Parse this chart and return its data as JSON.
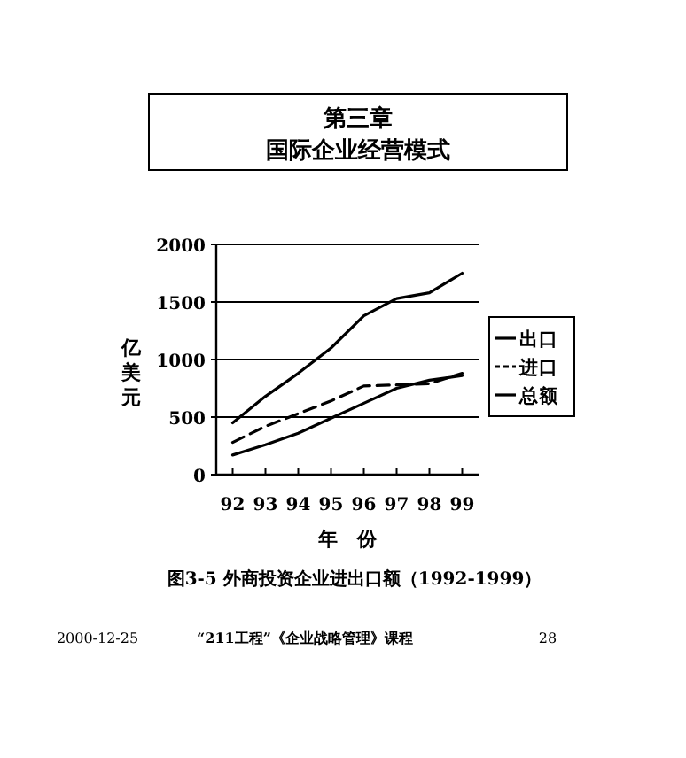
{
  "chart_data": {
    "type": "line",
    "title": "第三章",
    "subtitle": "国际企业经营模式",
    "xlabel": "年　份",
    "ylabel": "亿美元",
    "categories": [
      "92",
      "93",
      "94",
      "95",
      "96",
      "97",
      "98",
      "99"
    ],
    "series": [
      {
        "name": "出口",
        "color": "#000000",
        "line_style": "solid",
        "values": [
          170,
          260,
          360,
          490,
          620,
          750,
          820,
          860
        ]
      },
      {
        "name": "进口",
        "color": "#000000",
        "line_style": "dashed",
        "values": [
          280,
          420,
          530,
          640,
          770,
          780,
          790,
          880
        ]
      },
      {
        "name": "总额",
        "color": "#000000",
        "line_style": "solid",
        "values": [
          450,
          680,
          880,
          1100,
          1380,
          1530,
          1580,
          1750
        ]
      }
    ],
    "ylim": [
      0,
      2000
    ],
    "yticks": [
      0,
      500,
      1000,
      1500,
      2000
    ],
    "grid": "y",
    "legend": "right",
    "marker": "none",
    "annotations": [
      "图3-5  外商投资企业进出口额（1992-1999）",
      "2000-12-25",
      "“211工程”《企业战略管理》课程",
      "28"
    ]
  }
}
